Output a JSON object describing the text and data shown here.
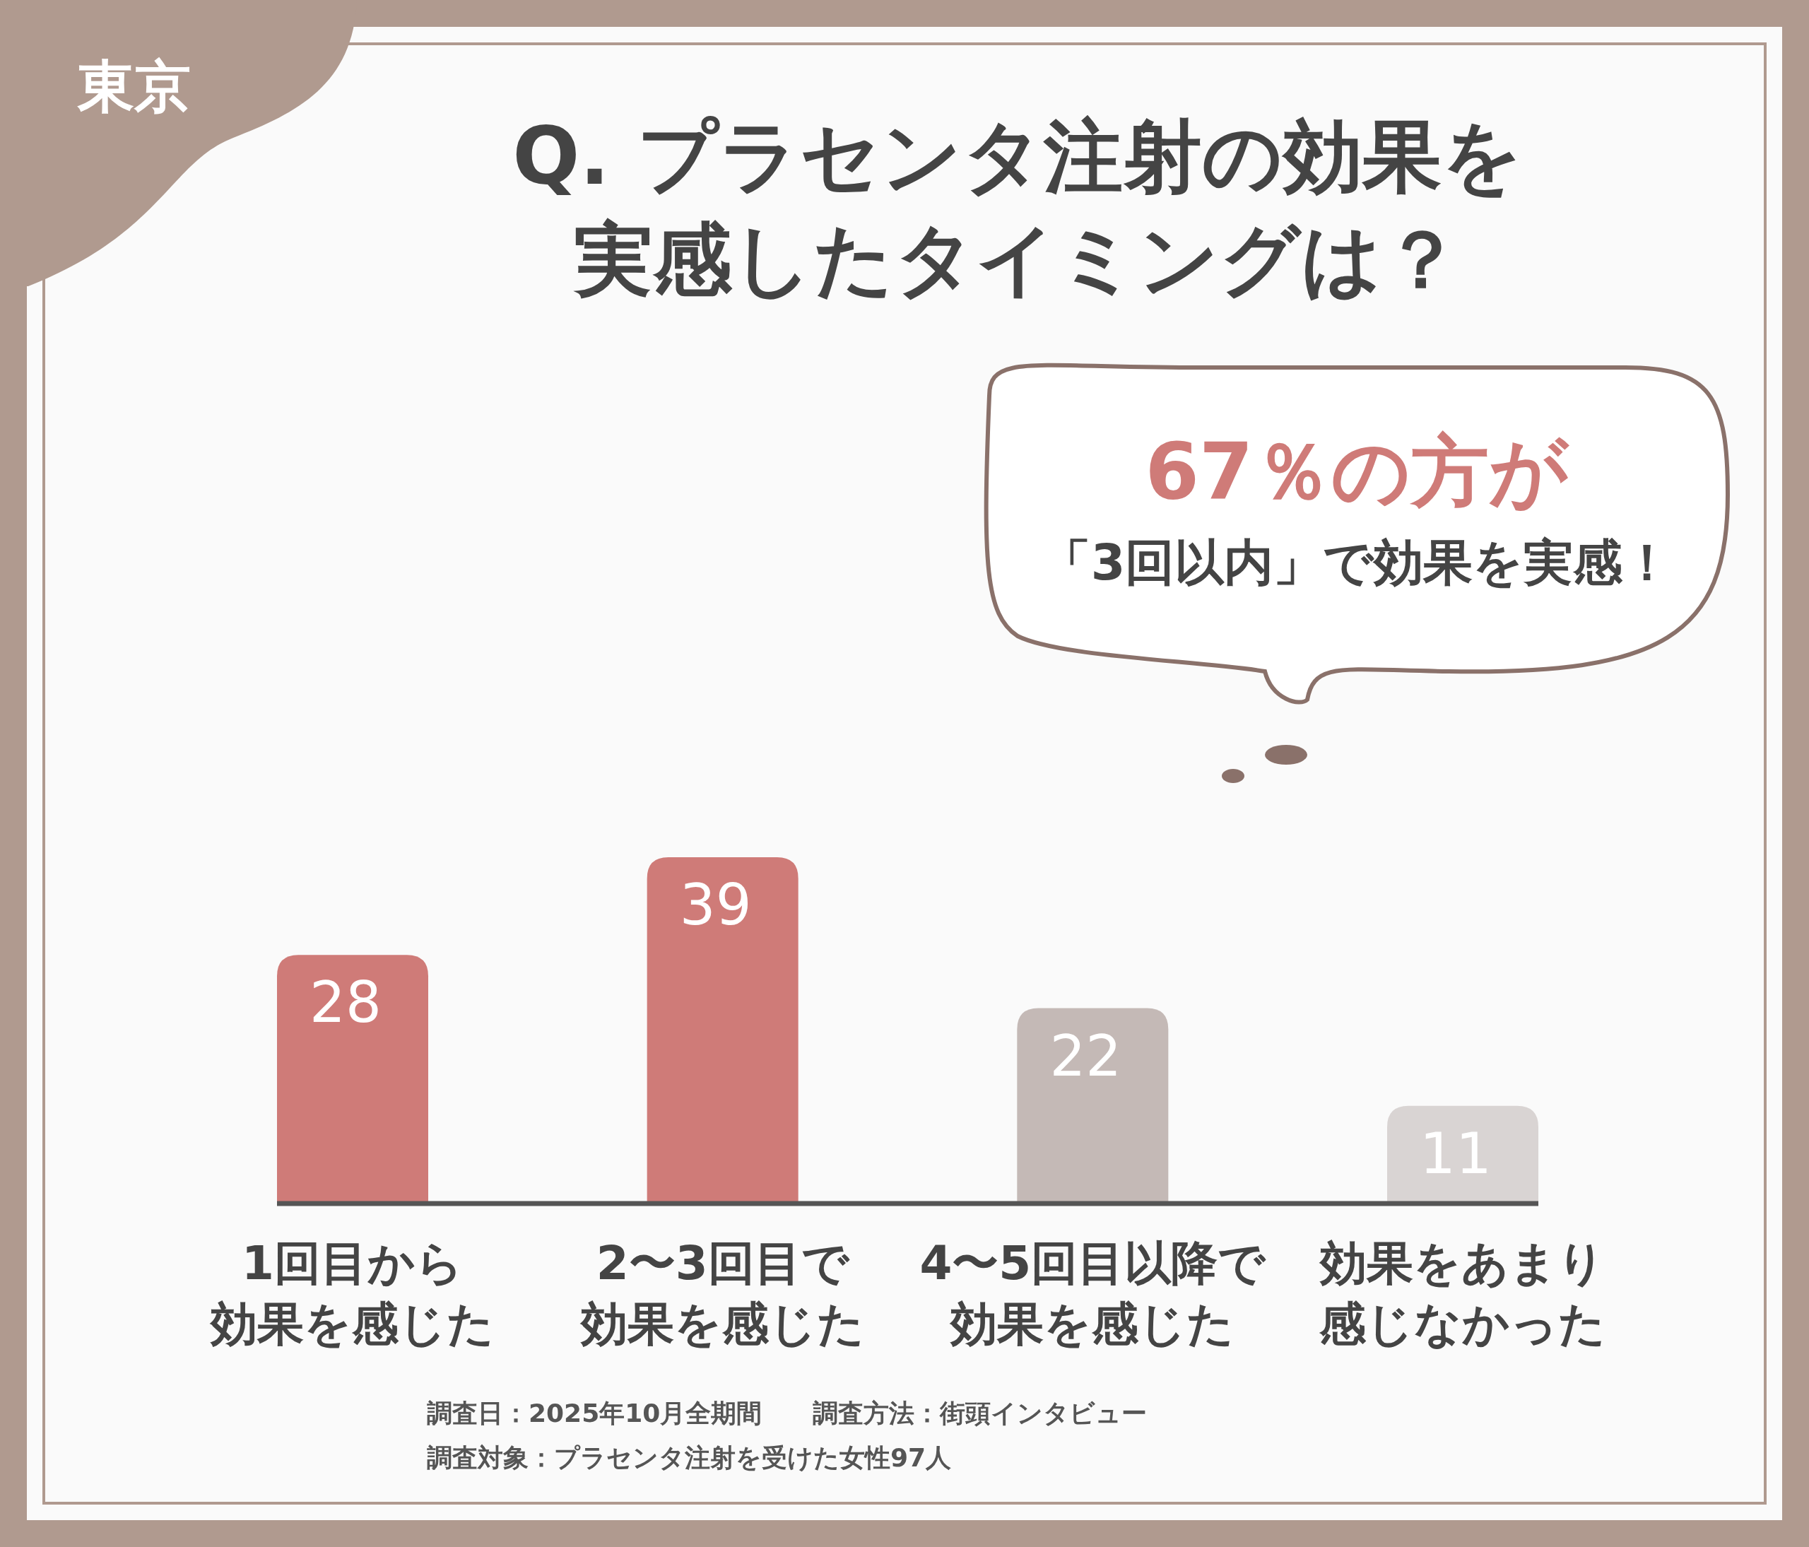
{
  "chart_data": {
    "type": "bar",
    "title": "Q. プラセンタ注射の効果を実感したタイミングは？",
    "categories": [
      "1回目から効果を感じた",
      "2〜3回目で効果を感じた",
      "4〜5回目以降で効果を感じた",
      "効果をあまり感じなかった"
    ],
    "values": [
      28,
      39,
      22,
      11
    ],
    "colors": [
      "#cf7b78",
      "#cf7b78",
      "#c4b9b6",
      "#d9d4d3"
    ],
    "data_labels": true,
    "annotations": [
      "東京",
      "67％の方が",
      "「3回以内」で効果を実感！",
      "調査日：2025年10月全期間　　調査方法：街頭インタビュー",
      "調査対象：プラセンタ注射を受けた女性97人"
    ]
  }
}
